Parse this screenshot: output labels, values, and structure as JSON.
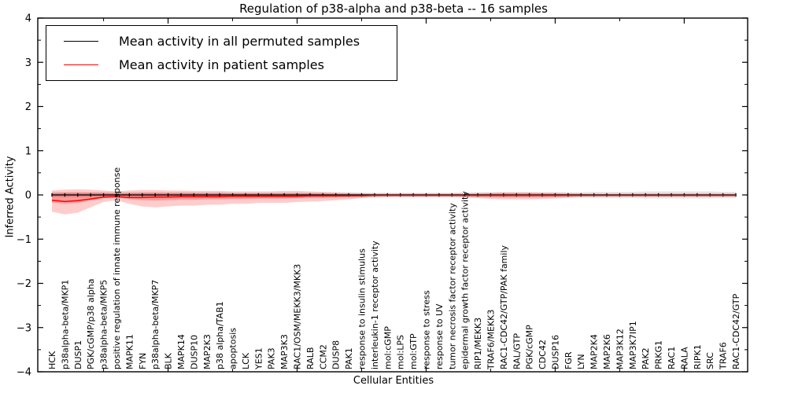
{
  "chart_data": {
    "type": "line",
    "title": "Regulation of p38-alpha and p38-beta -- 16 samples",
    "xlabel": "Cellular Entities",
    "ylabel": "Inferred Activity",
    "ylim": [
      -4,
      4
    ],
    "ytick_values": [
      -4,
      -3,
      -2,
      -1,
      0,
      1,
      2,
      3,
      4
    ],
    "ytick_labels": [
      "−4",
      "−3",
      "−2",
      "−1",
      "0",
      "1",
      "2",
      "3",
      "4"
    ],
    "grid": false,
    "legend_position": "upper left",
    "legend": [
      {
        "label": "Mean activity in all permuted samples",
        "color": "#000000"
      },
      {
        "label": "Mean activity in patient samples",
        "color": "#ff0000"
      }
    ],
    "categories": [
      "HCK",
      "p38alpha-beta/MKP1",
      "DUSP1",
      "PGK/cGMP/p38 alpha",
      "p38alpha-beta/MKP5",
      "positive regulation of innate immune response",
      "MAPK11",
      "FYN",
      "p38alpha-beta/MKP7",
      "BLK",
      "MAPK14",
      "DUSP10",
      "MAP2K3",
      "p38 alpha/TAB1",
      "apoptosis",
      "LCK",
      "YES1",
      "PAK3",
      "MAP3K3",
      "RAC1/OSM/MEKK3/MKK3",
      "RALB",
      "CCM2",
      "DUSP8",
      "PAK1",
      "response to insulin stimulus",
      "interleukin-1 receptor activity",
      "mol:cGMP",
      "mol:LPS",
      "mol:GTP",
      "response to stress",
      "response to UV",
      "tumor necrosis factor receptor activity",
      "epidermal growth factor receptor activity",
      "RIP1/MEKK3",
      "TRAF6/MEKK3",
      "RAC1-CDC42/GTP/PAK family",
      "RAL/GTP",
      "PGK/cGMP",
      "CDC42",
      "DUSP16",
      "FGR",
      "LYN",
      "MAP2K4",
      "MAP2K6",
      "MAP3K12",
      "MAP3K7IP1",
      "PAK2",
      "PRKG1",
      "RAC1",
      "RALA",
      "RIPK1",
      "SRC",
      "TRAF6",
      "RAC1-CDC42/GTP"
    ],
    "series": [
      {
        "name": "Mean activity in all permuted samples",
        "color": "#000000",
        "band_color": "#000000",
        "band_alpha": 0.1,
        "values": [
          0,
          0,
          0,
          0,
          0,
          0,
          0,
          0,
          0,
          0,
          0,
          0,
          0,
          0,
          0,
          0,
          0,
          0,
          0,
          0,
          0,
          0,
          0,
          0,
          0,
          0,
          0,
          0,
          0,
          0,
          0,
          0,
          0,
          0,
          0,
          0,
          0,
          0,
          0,
          0,
          0,
          0,
          0,
          0,
          0,
          0,
          0,
          0,
          0,
          0,
          0,
          0,
          0,
          0
        ],
        "band_lo": [
          -0.06,
          -0.06,
          -0.06,
          -0.06,
          -0.06,
          -0.06,
          -0.06,
          -0.06,
          -0.06,
          -0.06,
          -0.06,
          -0.06,
          -0.06,
          -0.06,
          -0.05,
          -0.05,
          -0.05,
          -0.05,
          -0.05,
          -0.05,
          -0.05,
          -0.05,
          -0.05,
          -0.05,
          -0.05,
          -0.05,
          -0.05,
          -0.05,
          -0.05,
          -0.05,
          -0.05,
          -0.05,
          -0.06,
          -0.06,
          -0.06,
          -0.06,
          -0.06,
          -0.06,
          -0.06,
          -0.06,
          -0.06,
          -0.06,
          -0.07,
          -0.07,
          -0.07,
          -0.07,
          -0.08,
          -0.08,
          -0.08,
          -0.08,
          -0.08,
          -0.08,
          -0.07,
          -0.07
        ],
        "band_hi": [
          0.06,
          0.06,
          0.06,
          0.06,
          0.06,
          0.06,
          0.06,
          0.06,
          0.06,
          0.06,
          0.06,
          0.06,
          0.06,
          0.06,
          0.05,
          0.05,
          0.05,
          0.05,
          0.05,
          0.05,
          0.05,
          0.05,
          0.05,
          0.05,
          0.05,
          0.05,
          0.05,
          0.05,
          0.05,
          0.05,
          0.05,
          0.05,
          0.06,
          0.06,
          0.06,
          0.06,
          0.06,
          0.06,
          0.06,
          0.06,
          0.06,
          0.06,
          0.07,
          0.07,
          0.07,
          0.07,
          0.08,
          0.08,
          0.08,
          0.08,
          0.08,
          0.08,
          0.07,
          0.07
        ]
      },
      {
        "name": "Mean activity in patient samples",
        "color": "#ff0000",
        "band_color": "#ff0000",
        "band_alpha": 0.2,
        "values": [
          -0.12,
          -0.15,
          -0.13,
          -0.09,
          -0.05,
          -0.04,
          -0.06,
          -0.06,
          -0.05,
          -0.05,
          -0.04,
          -0.04,
          -0.04,
          -0.04,
          -0.03,
          -0.03,
          -0.03,
          -0.03,
          -0.03,
          -0.03,
          -0.02,
          -0.02,
          -0.02,
          -0.02,
          -0.02,
          -0.01,
          -0.01,
          -0.01,
          -0.01,
          -0.01,
          -0.01,
          -0.01,
          -0.01,
          -0.01,
          -0.01,
          -0.01,
          -0.01,
          -0.01,
          -0.01,
          -0.01,
          -0.01,
          -0.01,
          -0.01,
          -0.01,
          -0.01,
          -0.01,
          -0.01,
          -0.01,
          -0.01,
          -0.01,
          -0.01,
          -0.01,
          -0.01,
          -0.01
        ],
        "band_lo": [
          -0.38,
          -0.44,
          -0.4,
          -0.28,
          -0.16,
          -0.12,
          -0.2,
          -0.26,
          -0.28,
          -0.26,
          -0.24,
          -0.24,
          -0.22,
          -0.22,
          -0.2,
          -0.2,
          -0.18,
          -0.18,
          -0.18,
          -0.16,
          -0.15,
          -0.14,
          -0.12,
          -0.1,
          -0.07,
          -0.05,
          -0.04,
          -0.04,
          -0.04,
          -0.04,
          -0.04,
          -0.04,
          -0.05,
          -0.07,
          -0.09,
          -0.1,
          -0.1,
          -0.1,
          -0.09,
          -0.08,
          -0.06,
          -0.04,
          -0.03,
          -0.03,
          -0.03,
          -0.03,
          -0.03,
          -0.03,
          -0.03,
          -0.03,
          -0.03,
          -0.03,
          -0.03,
          -0.03
        ],
        "band_hi": [
          0.1,
          0.12,
          0.13,
          0.12,
          0.1,
          0.08,
          0.1,
          0.11,
          0.11,
          0.1,
          0.1,
          0.09,
          0.09,
          0.09,
          0.08,
          0.08,
          0.08,
          0.08,
          0.09,
          0.09,
          0.08,
          0.07,
          0.06,
          0.05,
          0.04,
          0.03,
          0.03,
          0.03,
          0.03,
          0.03,
          0.03,
          0.03,
          0.03,
          0.04,
          0.05,
          0.06,
          0.06,
          0.06,
          0.05,
          0.05,
          0.04,
          0.03,
          0.02,
          0.02,
          0.02,
          0.02,
          0.02,
          0.02,
          0.02,
          0.02,
          0.02,
          0.02,
          0.02,
          0.02
        ]
      }
    ],
    "x_major_tick_indices": [
      9,
      19,
      29,
      39,
      49
    ],
    "x_minor_tick_indices": [
      4,
      14,
      24,
      34,
      44
    ]
  }
}
